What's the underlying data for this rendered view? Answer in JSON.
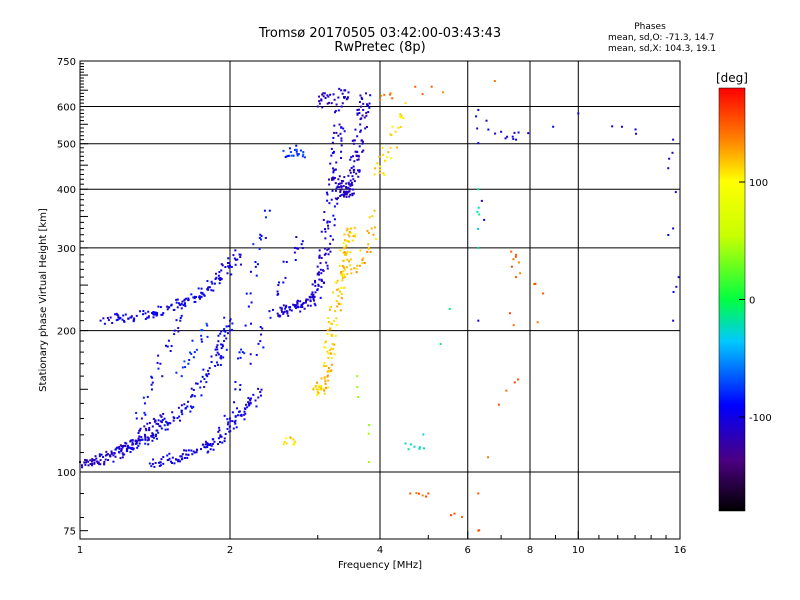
{
  "header": {
    "title": "Tromsø 20170505 03:42:00-03:43:43",
    "subtitle": "RwPretec (8p)",
    "phases_title": "Phases",
    "phases_o": "mean, sd,O: -71.3, 14.7",
    "phases_x": "mean, sd,X: 104.3, 19.1"
  },
  "chart_data": {
    "type": "scatter",
    "xlabel": "Frequency [MHz]",
    "ylabel": "Stationary phase Virtual Height [km]",
    "xscale": "log",
    "yscale": "log",
    "xlim": [
      1,
      16
    ],
    "ylim": [
      72,
      750
    ],
    "x_ticks": [
      1,
      2,
      4,
      6,
      8,
      10,
      16
    ],
    "x_tick_labels": [
      "1",
      "2",
      "4",
      "6",
      "8",
      "10",
      "16"
    ],
    "y_ticks": [
      75,
      100,
      200,
      300,
      400,
      500,
      600,
      750
    ],
    "y_tick_labels": [
      "75",
      "100",
      "200",
      "300",
      "400",
      "500",
      "600",
      "750"
    ],
    "grid": true,
    "colorbar": {
      "label": "[deg]",
      "range": [
        -180,
        180
      ],
      "ticks": [
        -100,
        0,
        100
      ],
      "tick_labels": [
        "-100",
        "0",
        "100"
      ]
    },
    "series": [
      {
        "phase": -110,
        "points": [
          [
            1.0,
            105
          ],
          [
            1.05,
            104
          ],
          [
            1.1,
            106
          ],
          [
            1.15,
            108
          ],
          [
            1.2,
            110
          ],
          [
            1.25,
            113
          ],
          [
            1.3,
            116
          ],
          [
            1.35,
            120
          ],
          [
            1.4,
            125
          ],
          [
            1.45,
            132
          ]
        ]
      },
      {
        "phase": -95,
        "points": [
          [
            1.2,
            112
          ],
          [
            1.3,
            115
          ],
          [
            1.4,
            120
          ],
          [
            1.5,
            126
          ],
          [
            1.6,
            135
          ],
          [
            1.7,
            145
          ],
          [
            1.8,
            160
          ],
          [
            1.9,
            178
          ],
          [
            1.95,
            195
          ],
          [
            2.0,
            210
          ]
        ]
      },
      {
        "phase": -100,
        "points": [
          [
            1.4,
            104
          ],
          [
            1.5,
            106
          ],
          [
            1.6,
            108
          ],
          [
            1.7,
            110
          ],
          [
            1.8,
            113
          ],
          [
            1.9,
            118
          ],
          [
            2.0,
            125
          ],
          [
            2.1,
            132
          ],
          [
            2.2,
            140
          ],
          [
            2.3,
            148
          ]
        ]
      },
      {
        "phase": -100,
        "points": [
          [
            1.1,
            210
          ],
          [
            1.2,
            212
          ],
          [
            1.3,
            215
          ],
          [
            1.4,
            218
          ],
          [
            1.5,
            222
          ],
          [
            1.6,
            228
          ],
          [
            1.7,
            236
          ],
          [
            1.8,
            245
          ],
          [
            1.9,
            258
          ],
          [
            2.0,
            275
          ],
          [
            2.1,
            290
          ]
        ]
      },
      {
        "phase": -95,
        "points": [
          [
            1.3,
            130
          ],
          [
            1.35,
            140
          ],
          [
            1.4,
            155
          ],
          [
            1.45,
            170
          ],
          [
            1.5,
            185
          ],
          [
            1.55,
            200
          ],
          [
            1.6,
            215
          ]
        ]
      },
      {
        "phase": -80,
        "points": [
          [
            1.6,
            160
          ],
          [
            1.65,
            170
          ],
          [
            1.7,
            180
          ],
          [
            1.75,
            195
          ],
          [
            1.8,
            205
          ]
        ]
      },
      {
        "phase": -90,
        "points": [
          [
            2.0,
            130
          ],
          [
            2.05,
            150
          ],
          [
            2.1,
            175
          ],
          [
            2.15,
            205
          ],
          [
            2.2,
            240
          ],
          [
            2.25,
            280
          ],
          [
            2.3,
            320
          ],
          [
            2.35,
            360
          ]
        ]
      },
      {
        "phase": -100,
        "points": [
          [
            2.2,
            170
          ],
          [
            2.3,
            190
          ],
          [
            2.4,
            220
          ],
          [
            2.5,
            250
          ],
          [
            2.6,
            280
          ],
          [
            2.7,
            300
          ],
          [
            2.8,
            310
          ]
        ]
      },
      {
        "phase": -105,
        "points": [
          [
            2.5,
            215
          ],
          [
            2.6,
            220
          ],
          [
            2.7,
            225
          ],
          [
            2.8,
            228
          ],
          [
            2.9,
            232
          ],
          [
            3.0,
            245
          ],
          [
            3.05,
            265
          ],
          [
            3.1,
            290
          ],
          [
            3.15,
            330
          ],
          [
            3.2,
            380
          ],
          [
            3.25,
            440
          ],
          [
            3.3,
            520
          ],
          [
            3.35,
            600
          ],
          [
            3.4,
            650
          ]
        ]
      },
      {
        "phase": -110,
        "points": [
          [
            3.3,
            420
          ],
          [
            3.35,
            400
          ],
          [
            3.4,
            390
          ],
          [
            3.45,
            395
          ],
          [
            3.5,
            410
          ],
          [
            3.55,
            440
          ],
          [
            3.6,
            480
          ],
          [
            3.65,
            530
          ],
          [
            3.7,
            590
          ],
          [
            3.75,
            640
          ]
        ]
      },
      {
        "phase": -115,
        "points": [
          [
            3.0,
            600
          ],
          [
            3.05,
            620
          ],
          [
            3.1,
            640
          ],
          [
            3.15,
            630
          ],
          [
            3.2,
            610
          ]
        ]
      },
      {
        "phase": -75,
        "points": [
          [
            2.6,
            470
          ],
          [
            2.65,
            480
          ],
          [
            2.7,
            485
          ],
          [
            2.75,
            475
          ],
          [
            2.8,
            470
          ]
        ]
      },
      {
        "phase": 110,
        "points": [
          [
            2.6,
            115
          ],
          [
            2.65,
            118
          ],
          [
            2.7,
            116
          ]
        ]
      },
      {
        "phase": 115,
        "points": [
          [
            3.0,
            148
          ],
          [
            3.05,
            150
          ],
          [
            3.1,
            158
          ],
          [
            3.15,
            175
          ],
          [
            3.2,
            195
          ],
          [
            3.25,
            220
          ],
          [
            3.3,
            245
          ],
          [
            3.35,
            265
          ],
          [
            3.4,
            290
          ],
          [
            3.45,
            310
          ],
          [
            3.5,
            330
          ]
        ]
      },
      {
        "phase": 120,
        "points": [
          [
            3.4,
            260
          ],
          [
            3.5,
            270
          ],
          [
            3.6,
            275
          ],
          [
            3.7,
            285
          ],
          [
            3.8,
            300
          ],
          [
            3.85,
            330
          ],
          [
            3.9,
            360
          ]
        ]
      },
      {
        "phase": 110,
        "points": [
          [
            3.9,
            430
          ],
          [
            4.0,
            440
          ],
          [
            4.1,
            460
          ],
          [
            4.2,
            490
          ],
          [
            4.3,
            530
          ],
          [
            4.4,
            570
          ],
          [
            4.5,
            610
          ]
        ]
      },
      {
        "phase": 140,
        "points": [
          [
            4.0,
            620
          ],
          [
            4.2,
            640
          ],
          [
            6.8,
            680
          ]
        ]
      },
      {
        "phase": -100,
        "points": [
          [
            6.3,
            210
          ],
          [
            6.3,
            590
          ],
          [
            7.0,
            530
          ],
          [
            7.5,
            510
          ],
          [
            10.0,
            580
          ],
          [
            15.5,
            510
          ],
          [
            15.5,
            330
          ],
          [
            15.5,
            210
          ]
        ]
      },
      {
        "phase": 150,
        "points": [
          [
            4.6,
            90
          ],
          [
            5.0,
            90
          ],
          [
            6.3,
            75
          ],
          [
            7.5,
            260
          ],
          [
            7.5,
            290
          ],
          [
            8.5,
            240
          ],
          [
            6.3,
            90
          ]
        ]
      },
      {
        "phase": -20,
        "points": [
          [
            4.5,
            115
          ],
          [
            4.8,
            112
          ],
          [
            6.3,
            400
          ],
          [
            6.3,
            300
          ]
        ]
      },
      {
        "phase": 40,
        "points": [
          [
            3.6,
            160
          ],
          [
            3.8,
            105
          ]
        ]
      }
    ]
  }
}
